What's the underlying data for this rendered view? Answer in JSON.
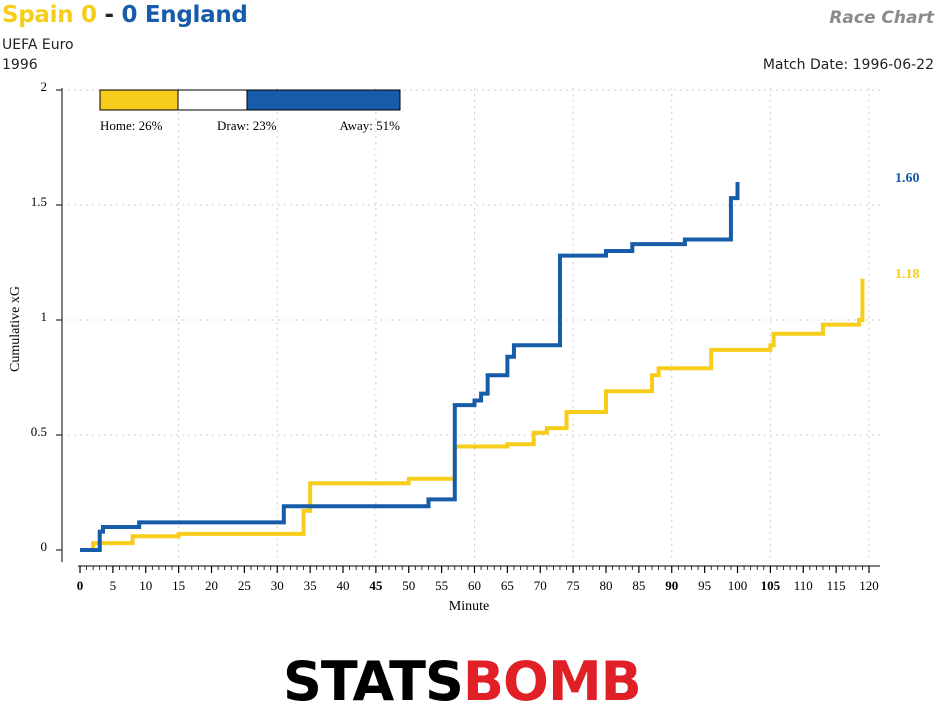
{
  "header": {
    "home_team": "Spain",
    "home_score": "0",
    "separator": "-",
    "away_score": "0",
    "away_team": "England",
    "competition": "UEFA Euro",
    "season": "1996",
    "chart_type_label": "Race Chart",
    "match_date_label": "Match Date: 1996-06-22"
  },
  "colors": {
    "home": "#f5cd1a",
    "away": "#175ca8"
  },
  "probability_bar": {
    "home_label": "Home: 26%",
    "draw_label": "Draw: 23%",
    "away_label": "Away: 51%",
    "home": 0.26,
    "draw": 0.23,
    "away": 0.51
  },
  "final_labels": {
    "away": "1.60",
    "home": "1.18"
  },
  "logo": {
    "part1": "STATS",
    "part2": "BOMB"
  },
  "chart_data": {
    "type": "line",
    "xlabel": "Minute",
    "ylabel": "Cumulative xG",
    "xlim": [
      0,
      120
    ],
    "ylim": [
      0,
      2
    ],
    "x_ticks": [
      0,
      5,
      10,
      15,
      20,
      25,
      30,
      35,
      40,
      45,
      50,
      55,
      60,
      65,
      70,
      75,
      80,
      85,
      90,
      95,
      100,
      105,
      110,
      115,
      120
    ],
    "x_ticks_bold": [
      0,
      45,
      90,
      105
    ],
    "y_ticks": [
      0,
      0.5,
      1,
      1.5,
      2
    ],
    "y_tick_labels": [
      "0",
      "0.5",
      "1",
      "1.5",
      "2"
    ],
    "grid": true,
    "series": [
      {
        "name": "Spain",
        "side": "home",
        "steps": [
          [
            2,
            0.03
          ],
          [
            8,
            0.06
          ],
          [
            15,
            0.07
          ],
          [
            34,
            0.17
          ],
          [
            35,
            0.29
          ],
          [
            50,
            0.31
          ],
          [
            57,
            0.45
          ],
          [
            65,
            0.46
          ],
          [
            69,
            0.51
          ],
          [
            71,
            0.53
          ],
          [
            74,
            0.6
          ],
          [
            80,
            0.69
          ],
          [
            87,
            0.76
          ],
          [
            88,
            0.79
          ],
          [
            96,
            0.87
          ],
          [
            105,
            0.89
          ],
          [
            105.5,
            0.94
          ],
          [
            113,
            0.98
          ],
          [
            118.5,
            1.0
          ],
          [
            119,
            1.18
          ]
        ],
        "end": 119
      },
      {
        "name": "England",
        "side": "away",
        "steps": [
          [
            3,
            0.08
          ],
          [
            3.5,
            0.1
          ],
          [
            9,
            0.12
          ],
          [
            31,
            0.19
          ],
          [
            53,
            0.22
          ],
          [
            57,
            0.63
          ],
          [
            60,
            0.65
          ],
          [
            61,
            0.68
          ],
          [
            62,
            0.76
          ],
          [
            65,
            0.84
          ],
          [
            66,
            0.89
          ],
          [
            73,
            1.28
          ],
          [
            80,
            1.3
          ],
          [
            84,
            1.33
          ],
          [
            92,
            1.35
          ],
          [
            99,
            1.53
          ],
          [
            100,
            1.6
          ]
        ],
        "end": 100
      }
    ]
  }
}
